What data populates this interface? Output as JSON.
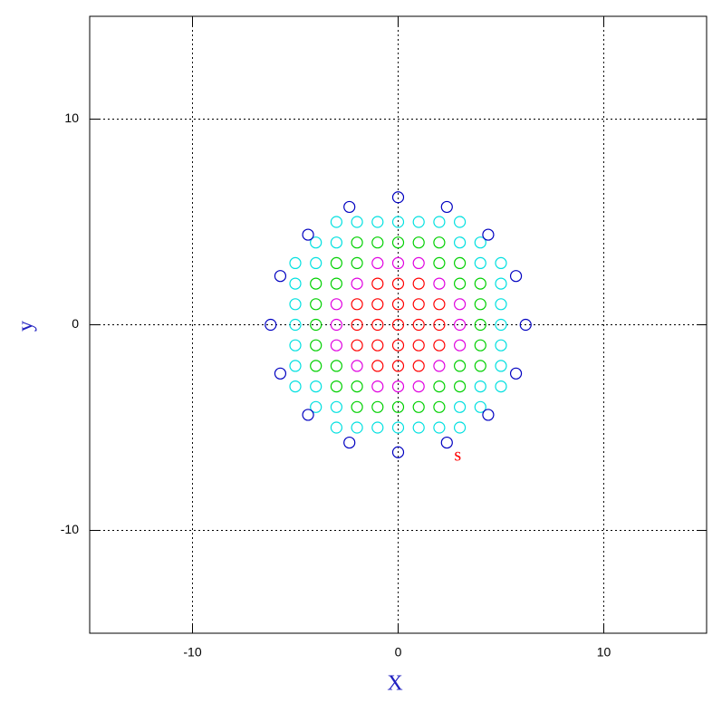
{
  "chart_data": {
    "type": "scatter",
    "xlabel": "X",
    "ylabel": "y",
    "xlim": [
      -15,
      15
    ],
    "ylim": [
      -15,
      15
    ],
    "xticks": [
      -10,
      0,
      10
    ],
    "yticks": [
      -10,
      0,
      10
    ],
    "grid": true,
    "series": [
      {
        "color": "#ff0000",
        "x": [
          0,
          1,
          -1,
          0,
          0,
          1,
          1,
          -1,
          -1,
          2,
          -2,
          0,
          0,
          2,
          2,
          -2,
          -2,
          1,
          1,
          -1,
          -1
        ],
        "values": [
          0,
          0,
          0,
          1,
          -1,
          1,
          -1,
          1,
          -1,
          0,
          0,
          2,
          -2,
          1,
          -1,
          1,
          -1,
          2,
          -2,
          2,
          -2
        ]
      },
      {
        "color": "#e000e0",
        "x": [
          2,
          2,
          -2,
          -2,
          3,
          -3,
          0,
          0,
          3,
          3,
          -3,
          -3,
          1,
          1,
          -1,
          -1
        ],
        "values": [
          2,
          -2,
          2,
          -2,
          0,
          0,
          3,
          -3,
          1,
          -1,
          1,
          -1,
          3,
          -3,
          3,
          -3
        ]
      },
      {
        "color": "#00d000",
        "x": [
          3,
          3,
          -3,
          -3,
          2,
          2,
          -2,
          -2,
          4,
          -4,
          0,
          0,
          4,
          4,
          -4,
          -4,
          1,
          1,
          -1,
          -1,
          3,
          3,
          -3,
          -3,
          4,
          4,
          -4,
          -4,
          2,
          2,
          -2,
          -2
        ],
        "values": [
          2,
          -2,
          2,
          -2,
          3,
          -3,
          3,
          -3,
          0,
          0,
          4,
          -4,
          1,
          -1,
          1,
          -1,
          4,
          -4,
          4,
          -4,
          3,
          -3,
          3,
          -3,
          2,
          -2,
          2,
          -2,
          4,
          -4,
          4,
          -4
        ]
      },
      {
        "color": "#00e0e0",
        "x": [
          5,
          -5,
          0,
          0,
          4,
          4,
          -4,
          -4,
          3,
          3,
          -3,
          -3,
          5,
          5,
          -5,
          -5,
          1,
          1,
          -1,
          -1,
          5,
          5,
          -5,
          -5,
          2,
          2,
          -2,
          -2,
          4,
          4,
          -4,
          -4,
          5,
          5,
          -5,
          -5,
          3,
          3,
          -3,
          -3
        ],
        "values": [
          0,
          0,
          5,
          -5,
          3,
          -3,
          3,
          -3,
          4,
          -4,
          4,
          -4,
          1,
          -1,
          1,
          -1,
          5,
          -5,
          5,
          -5,
          2,
          -2,
          2,
          -2,
          5,
          -5,
          5,
          -5,
          4,
          -4,
          4,
          -4,
          3,
          -3,
          3,
          -3,
          5,
          -5,
          5,
          -5
        ]
      },
      {
        "color": "#0000c0",
        "x": [
          6.2,
          5.73,
          4.38,
          2.37,
          0,
          -2.37,
          -4.38,
          -5.73,
          -6.2,
          -5.73,
          -4.38,
          -2.37,
          0,
          2.37,
          4.38,
          5.73
        ],
        "values": [
          0,
          2.37,
          4.38,
          5.73,
          6.2,
          5.73,
          4.38,
          2.37,
          0,
          -2.37,
          -4.38,
          -5.73,
          -6.2,
          -5.73,
          -4.38,
          -2.37
        ]
      }
    ],
    "annotations": [
      {
        "text": "s",
        "x": 2.9,
        "y": -6.4,
        "color": "#ff0000"
      }
    ]
  }
}
